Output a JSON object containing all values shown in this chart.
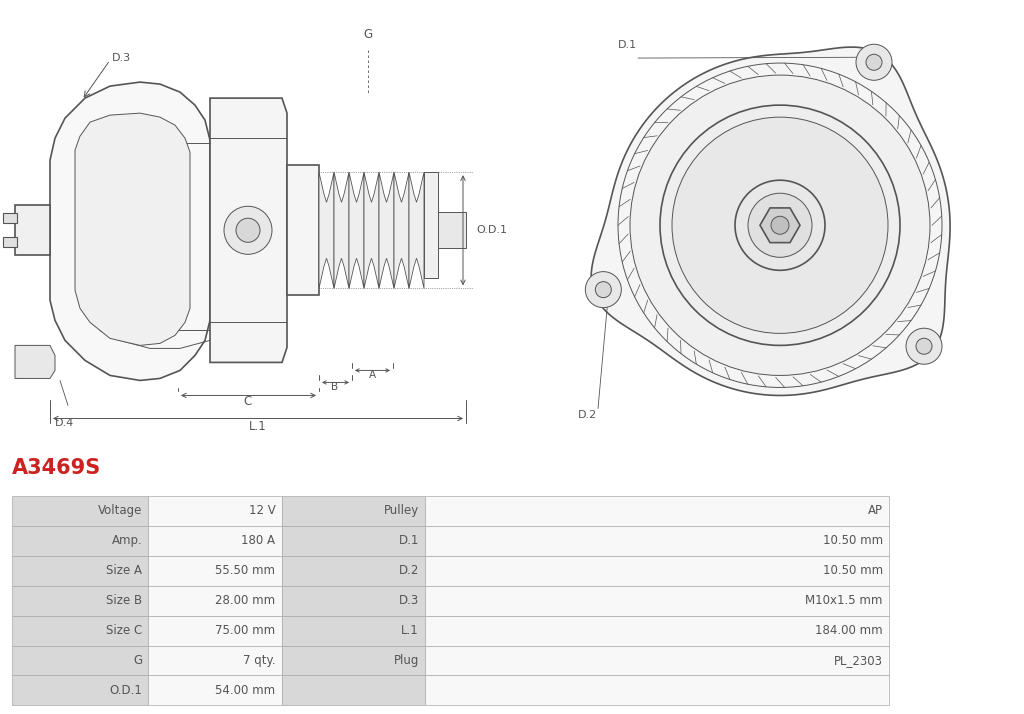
{
  "title": "A3469S",
  "title_color": "#cc2222",
  "bg_color": "#ffffff",
  "table_rows": [
    [
      "Voltage",
      "12 V",
      "Pulley",
      "AP"
    ],
    [
      "Amp.",
      "180 A",
      "D.1",
      "10.50 mm"
    ],
    [
      "Size A",
      "55.50 mm",
      "D.2",
      "10.50 mm"
    ],
    [
      "Size B",
      "28.00 mm",
      "D.3",
      "M10x1.5 mm"
    ],
    [
      "Size C",
      "75.00 mm",
      "L.1",
      "184.00 mm"
    ],
    [
      "G",
      "7 qty.",
      "Plug",
      "PL_2303"
    ],
    [
      "O.D.1",
      "54.00 mm",
      "",
      ""
    ]
  ],
  "header_bg": "#d8d8d8",
  "cell_bg": "#f0f0f0",
  "line_color": "#aaaaaa",
  "text_color": "#555555",
  "font_size": 8.5,
  "lc": "#555555",
  "dim_color": "#555555"
}
